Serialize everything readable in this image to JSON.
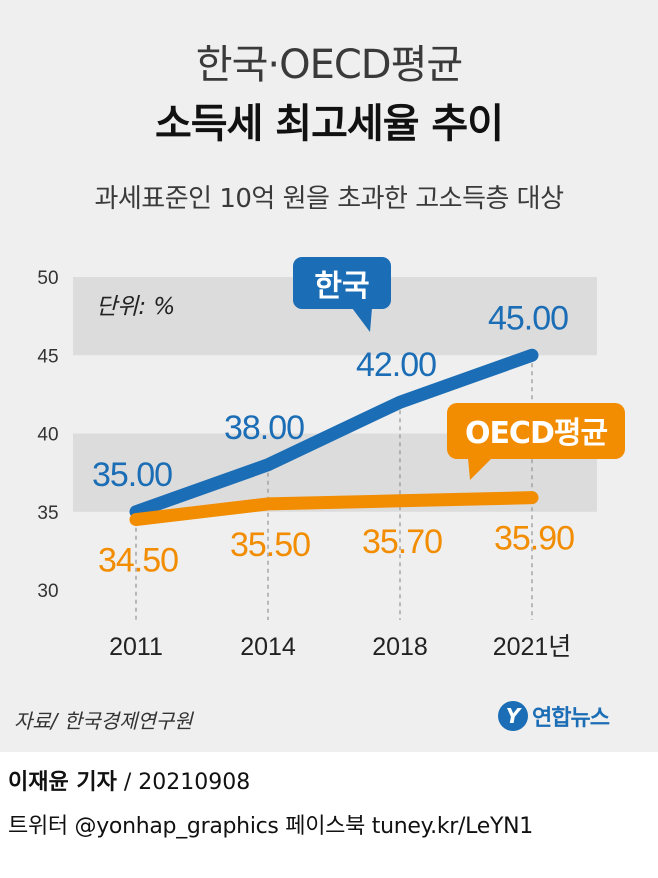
{
  "header": {
    "title_line1": "한국·OECD평균",
    "title_line2": "소득세 최고세율 추이",
    "subtitle": "과세표준인 10억 원을 초과한 고소득층 대상"
  },
  "chart_data": {
    "type": "line",
    "unit_label": "단위: %",
    "categories": [
      "2011",
      "2014",
      "2018",
      "2021년"
    ],
    "ylim": [
      30,
      50
    ],
    "yticks": [
      "30",
      "35",
      "40",
      "45",
      "50"
    ],
    "series": [
      {
        "name": "한국",
        "values": [
          35.0,
          38.0,
          42.0,
          45.0
        ],
        "labels": [
          "35.00",
          "38.00",
          "42.00",
          "45.00"
        ],
        "color": "#1b6db5"
      },
      {
        "name": "OECD평균",
        "values": [
          34.5,
          35.5,
          35.7,
          35.9
        ],
        "labels": [
          "34.50",
          "35.50",
          "35.70",
          "35.90"
        ],
        "color": "#f28c00"
      }
    ],
    "grid": "alternating horizontal bands"
  },
  "footer": {
    "source": "자료/ 한국경제연구원",
    "brand": "연합뉴스",
    "brand_logo": "Y",
    "reporter_name": "이재윤 기자",
    "reporter_date": " / 20210908",
    "social": "트위터 @yonhap_graphics  페이스북 tuney.kr/LeYN1"
  },
  "colors": {
    "korea": "#1b6db5",
    "oecd": "#f28c00",
    "background": "#efefef",
    "band": "#dcdcdc"
  }
}
